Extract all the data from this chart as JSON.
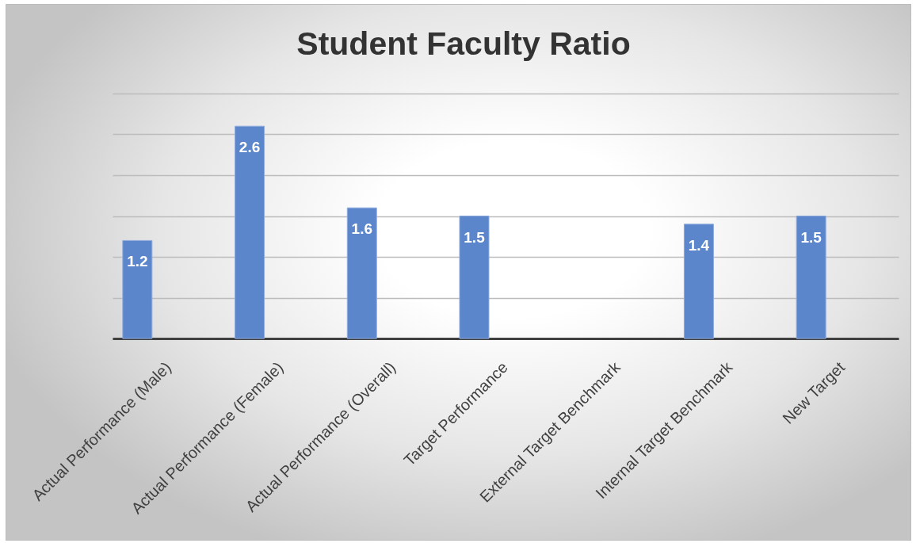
{
  "chart_data": {
    "type": "bar",
    "title": "Student Faculty Ratio",
    "categories": [
      "Actual Performance (Male)",
      "Actual Performance (Female)",
      "Actual Performance (Overall)",
      "Target Performance",
      "External Target Benchmark",
      "Internal Target Benchmark",
      "New Target"
    ],
    "values": [
      1.2,
      2.6,
      1.6,
      1.5,
      null,
      1.4,
      1.5
    ],
    "color": "#5b86cc",
    "ylim": [
      0,
      3
    ],
    "yticks": [
      {
        "value": 0,
        "label": null
      },
      {
        "value": 0.5,
        "label": null
      },
      {
        "value": 1,
        "label": null
      },
      {
        "value": 1.5,
        "label": null
      },
      {
        "value": 2,
        "label": null
      },
      {
        "value": 2.5,
        "label": null
      },
      {
        "value": 3,
        "label": null
      }
    ],
    "grid": "y",
    "tick_labels": "x",
    "data_labels": true
  }
}
